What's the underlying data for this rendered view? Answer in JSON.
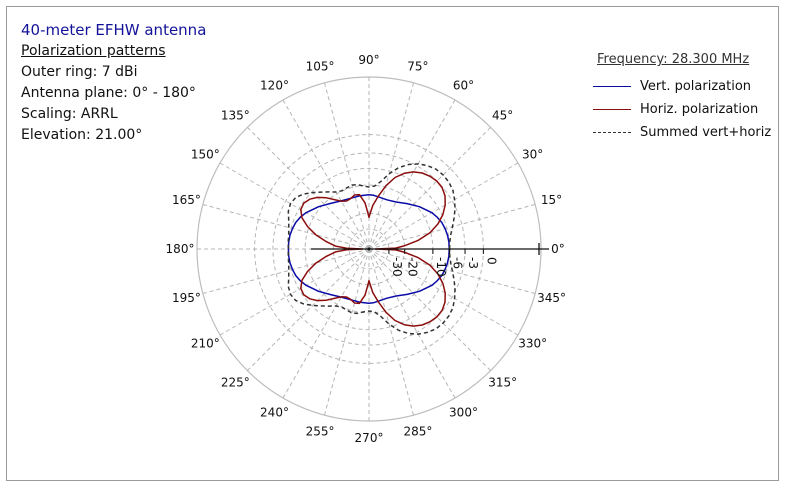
{
  "info": {
    "title": "40-meter EFHW antenna",
    "subtitle": "Polarization patterns",
    "outer_ring": "Outer ring: 7 dBi",
    "antenna_plane": "Antenna plane: 0° - 180°",
    "scaling": "Scaling: ARRL",
    "elevation": "Elevation: 21.00°"
  },
  "legend": {
    "frequency": "Frequency: 28.300 MHz",
    "items": [
      {
        "label": "Vert. polarization",
        "color": "#0a0aa8",
        "style": "solid"
      },
      {
        "label": "Horiz. polarization",
        "color": "#8b0d0d",
        "style": "solid"
      },
      {
        "label": "Summed vert+horiz",
        "color": "#333333",
        "style": "dashed"
      }
    ]
  },
  "chart_data": {
    "type": "polar",
    "angle_labels": [
      "0°",
      "15°",
      "30°",
      "45°",
      "60°",
      "75°",
      "90°",
      "105°",
      "120°",
      "135°",
      "150°",
      "165°",
      "180°",
      "195°",
      "210°",
      "225°",
      "240°",
      "255°",
      "270°",
      "285°",
      "300°",
      "315°",
      "330°",
      "345°"
    ],
    "radial_tick_labels": [
      "0",
      "-3",
      "-6",
      "-10",
      "-20",
      "-30"
    ],
    "radial_ticks_db": [
      0,
      -3,
      -6,
      -10,
      -20,
      -30
    ],
    "outer_ring_dbi": 7,
    "scaling": "ARRL",
    "grid": true,
    "series": [
      {
        "name": "Vert. polarization",
        "color": "#0a0aa8",
        "dash": false,
        "angles_deg": [
          0,
          5,
          10,
          15,
          20,
          25,
          30,
          40,
          50,
          60,
          70,
          80,
          85,
          90,
          95,
          100,
          110,
          120,
          130,
          140,
          150,
          155,
          160,
          165,
          170,
          175,
          180
        ],
        "values_db": [
          -6.1,
          -6.1,
          -6.2,
          -6.4,
          -6.7,
          -7.2,
          -7.8,
          -9.5,
          -11.3,
          -12.8,
          -13.4,
          -13.2,
          -12.9,
          -12.8,
          -12.9,
          -12.9,
          -12.9,
          -12.4,
          -11.2,
          -9.5,
          -7.8,
          -7.1,
          -6.6,
          -6.3,
          -6.1,
          -6.0,
          -6.0
        ]
      },
      {
        "name": "Horiz. polarization",
        "color": "#8b0d0d",
        "dash": false,
        "angles_deg": [
          0,
          2,
          5,
          10,
          15,
          20,
          25,
          30,
          35,
          40,
          45,
          50,
          55,
          60,
          65,
          70,
          75,
          80,
          85,
          88,
          90,
          92,
          95,
          100,
          105,
          110,
          115,
          120,
          125,
          130,
          135,
          140,
          145,
          150,
          155,
          160,
          165,
          170,
          175,
          178,
          180
        ],
        "values_db": [
          -50.0,
          -25.0,
          -20.2,
          -14.2,
          -10.2,
          -7.6,
          -5.8,
          -4.5,
          -3.6,
          -3.1,
          -3.0,
          -3.2,
          -3.6,
          -4.3,
          -5.4,
          -7.0,
          -9.6,
          -13.0,
          -16.5,
          -20.0,
          -22.0,
          -19.5,
          -15.5,
          -12.5,
          -12.3,
          -13.0,
          -13.2,
          -12.5,
          -11.0,
          -9.2,
          -7.7,
          -6.7,
          -6.2,
          -6.4,
          -7.5,
          -9.6,
          -12.5,
          -16.5,
          -21.0,
          -28.0,
          -50.0
        ]
      },
      {
        "name": "Summed vert+horiz",
        "color": "#333333",
        "dash": true,
        "angles_deg": [
          0,
          5,
          10,
          15,
          20,
          25,
          30,
          35,
          40,
          45,
          50,
          55,
          60,
          65,
          70,
          75,
          80,
          85,
          90,
          95,
          100,
          105,
          110,
          115,
          120,
          125,
          130,
          135,
          140,
          145,
          150,
          155,
          160,
          165,
          170,
          175,
          180
        ],
        "values_db": [
          -6.0,
          -5.9,
          -5.5,
          -4.8,
          -4.0,
          -3.2,
          -2.5,
          -1.9,
          -1.6,
          -1.5,
          -1.6,
          -2.0,
          -2.6,
          -3.5,
          -4.8,
          -6.6,
          -8.8,
          -10.2,
          -10.5,
          -10.2,
          -9.6,
          -9.4,
          -9.7,
          -9.9,
          -9.5,
          -8.5,
          -7.4,
          -6.2,
          -5.0,
          -4.2,
          -4.0,
          -4.3,
          -5.0,
          -5.5,
          -5.8,
          -5.9,
          -6.0
        ]
      }
    ]
  }
}
